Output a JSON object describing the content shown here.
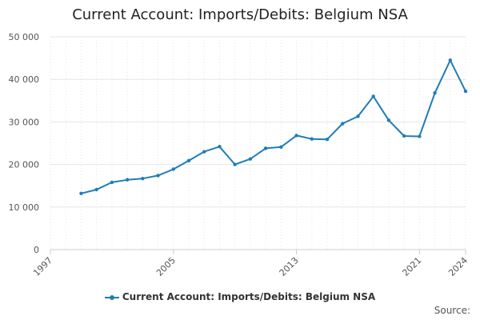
{
  "colors": {
    "series": "#1f7db7",
    "grid": "#e6e6e6",
    "axis": "#cccccc"
  },
  "chart_data": {
    "type": "line",
    "title": "Current Account: Imports/Debits: Belgium NSA",
    "xlabel": "",
    "ylabel": "",
    "xlim": [
      1997,
      2024
    ],
    "ylim": [
      0,
      50000
    ],
    "grid": true,
    "legend_position": "bottom",
    "y_ticks": [
      {
        "value": 0,
        "label": "0"
      },
      {
        "value": 10000,
        "label": "10 000"
      },
      {
        "value": 20000,
        "label": "20 000"
      },
      {
        "value": 30000,
        "label": "30 000"
      },
      {
        "value": 40000,
        "label": "40 000"
      },
      {
        "value": 50000,
        "label": "50 000"
      }
    ],
    "x_ticks": [
      {
        "value": 1997,
        "label": "1997"
      },
      {
        "value": 2005,
        "label": "2005"
      },
      {
        "value": 2013,
        "label": "2013"
      },
      {
        "value": 2021,
        "label": "2021"
      },
      {
        "value": 2024,
        "label": "2024"
      }
    ],
    "series": [
      {
        "name": "Current Account: Imports/Debits: Belgium NSA",
        "x": [
          1999,
          2000,
          2001,
          2002,
          2003,
          2004,
          2005,
          2006,
          2007,
          2008,
          2009,
          2010,
          2011,
          2012,
          2013,
          2014,
          2015,
          2016,
          2017,
          2018,
          2019,
          2020,
          2021,
          2022,
          2023,
          2024
        ],
        "y": [
          13200,
          14100,
          15800,
          16400,
          16700,
          17400,
          18900,
          20900,
          23000,
          24200,
          20000,
          21300,
          23800,
          24100,
          26800,
          26000,
          25900,
          29600,
          31300,
          36000,
          30400,
          26700,
          26600,
          36800,
          44500,
          37200
        ]
      }
    ]
  },
  "source_label": "Source:"
}
